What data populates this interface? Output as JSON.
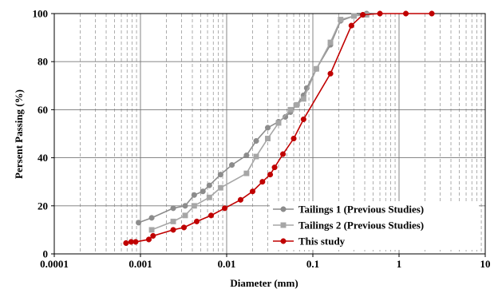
{
  "chart_data": {
    "type": "scatter",
    "title": "",
    "xlabel": "Diameter (mm)",
    "ylabel": "Persent Passing (%)",
    "x_scale": "log",
    "xlim": [
      0.0001,
      10
    ],
    "ylim": [
      0,
      100
    ],
    "x_ticks": [
      "0.0001",
      "0.001",
      "0.01",
      "0.1",
      "1",
      "10"
    ],
    "y_ticks": [
      "0",
      "20",
      "40",
      "60",
      "80",
      "100"
    ],
    "grid": true,
    "legend_position": "bottom-right",
    "series": [
      {
        "name": "Tailings 1 (Previous Studies)",
        "color": "#8c8c8c",
        "marker": "circle",
        "points": [
          [
            0.00095,
            13
          ],
          [
            0.00135,
            15
          ],
          [
            0.0024,
            19
          ],
          [
            0.0033,
            20
          ],
          [
            0.0042,
            24.5
          ],
          [
            0.0053,
            26
          ],
          [
            0.0063,
            28.5
          ],
          [
            0.0085,
            33
          ],
          [
            0.0115,
            37
          ],
          [
            0.017,
            41
          ],
          [
            0.022,
            47
          ],
          [
            0.03,
            52.5
          ],
          [
            0.04,
            55
          ],
          [
            0.048,
            57
          ],
          [
            0.055,
            59
          ],
          [
            0.065,
            62
          ],
          [
            0.078,
            66
          ],
          [
            0.085,
            69
          ],
          [
            0.11,
            77
          ],
          [
            0.16,
            87
          ],
          [
            0.21,
            97
          ],
          [
            0.3,
            99
          ],
          [
            0.42,
            100
          ]
        ]
      },
      {
        "name": "Tailings 2 (Previous Studies)",
        "color": "#a6a6a6",
        "marker": "square",
        "points": [
          [
            0.00135,
            10
          ],
          [
            0.0024,
            13.5
          ],
          [
            0.0033,
            16
          ],
          [
            0.0042,
            20
          ],
          [
            0.0063,
            23.5
          ],
          [
            0.0085,
            27.5
          ],
          [
            0.017,
            33.5
          ],
          [
            0.022,
            40.5
          ],
          [
            0.03,
            48
          ],
          [
            0.04,
            54.5
          ],
          [
            0.055,
            60
          ],
          [
            0.065,
            62
          ],
          [
            0.078,
            64.5
          ],
          [
            0.11,
            77
          ],
          [
            0.16,
            88
          ],
          [
            0.21,
            97.5
          ],
          [
            0.3,
            99
          ],
          [
            0.42,
            99.5
          ]
        ]
      },
      {
        "name": "This study",
        "color": "#c00000",
        "marker": "circle",
        "points": [
          [
            0.00068,
            4.5
          ],
          [
            0.00078,
            5
          ],
          [
            0.00088,
            5
          ],
          [
            0.00125,
            6
          ],
          [
            0.0014,
            7.5
          ],
          [
            0.0024,
            10
          ],
          [
            0.0032,
            11
          ],
          [
            0.0045,
            13.5
          ],
          [
            0.0066,
            16
          ],
          [
            0.0095,
            19
          ],
          [
            0.0145,
            22.5
          ],
          [
            0.02,
            26
          ],
          [
            0.026,
            30
          ],
          [
            0.032,
            33
          ],
          [
            0.036,
            36
          ],
          [
            0.045,
            41.5
          ],
          [
            0.06,
            48
          ],
          [
            0.078,
            56
          ],
          [
            0.16,
            75
          ],
          [
            0.28,
            95
          ],
          [
            0.38,
            99.5
          ],
          [
            0.6,
            100
          ],
          [
            1.2,
            100
          ],
          [
            2.4,
            100
          ]
        ]
      }
    ]
  }
}
